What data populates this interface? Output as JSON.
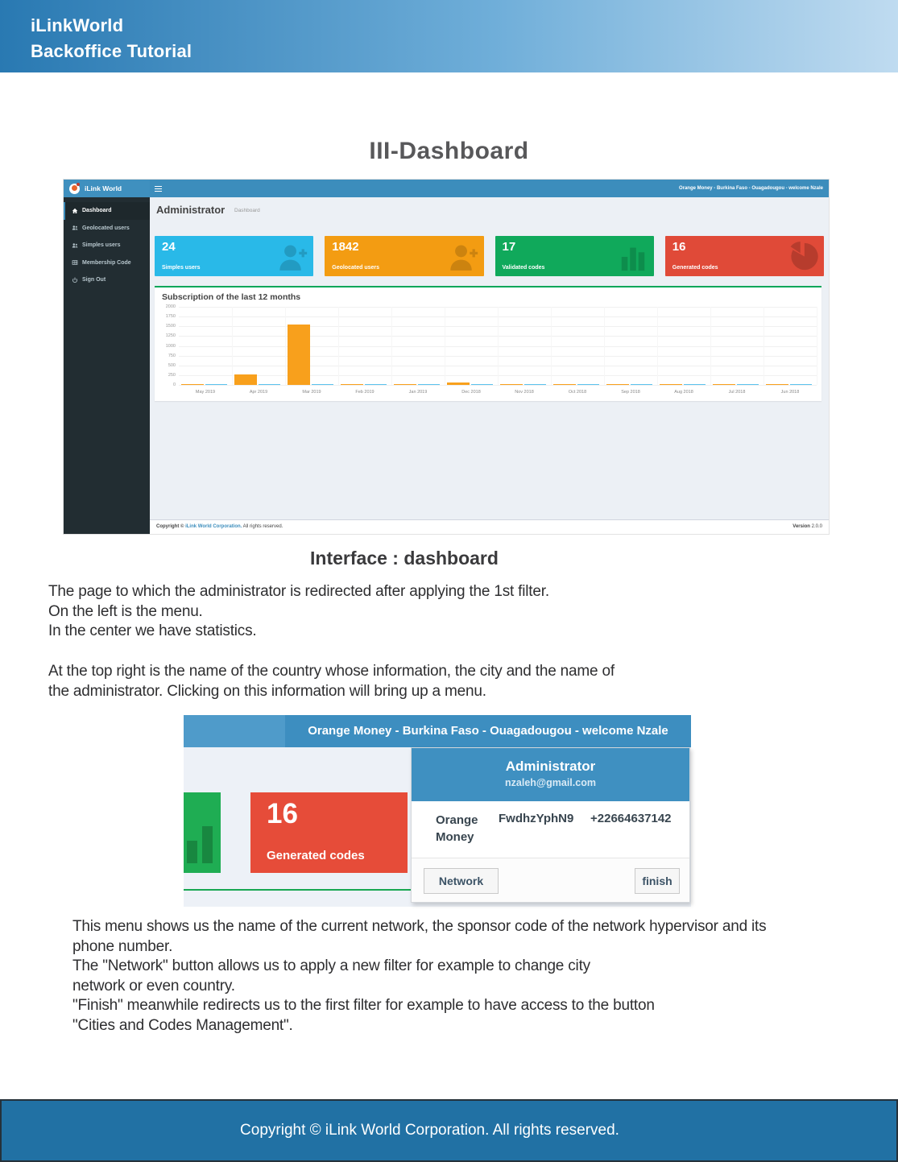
{
  "doc": {
    "header": {
      "line1": "iLinkWorld",
      "line2": "Backoffice Tutorial"
    },
    "title": "III-Dashboard",
    "subtitle": "Interface : dashboard",
    "para1": [
      "The page to which the administrator is redirected after applying the 1st filter.",
      "On the left is the menu.",
      "In the center we have statistics.",
      "",
      "At the top right is the name of the country whose information, the city and the name of",
      " the administrator. Clicking on this information will bring up a menu."
    ],
    "para2": [
      "This menu shows us the name of the current network, the sponsor code of the network hypervisor and its",
      "phone number.",
      "The \"Network\" button allows us to apply a new filter for example to change city",
      "network or even country.",
      "\"Finish\" meanwhile redirects us to the first filter for example to have access to the button",
      " \"Cities and Codes Management\"."
    ],
    "footer": "Copyright © iLink World Corporation. All rights reserved."
  },
  "dashboard": {
    "brand": "iLink World",
    "logo_icon": "ilink-globe-pin-icon",
    "menu_toggle_icon": "hamburger-icon",
    "topbar_right": "Orange Money - Burkina Faso - Ouagadougou - welcome Nzale",
    "menu": [
      {
        "label": "Dashboard",
        "icon": "home-icon",
        "active": true
      },
      {
        "label": "Geolocated users",
        "icon": "users-icon",
        "active": false
      },
      {
        "label": "Simples users",
        "icon": "users-icon",
        "active": false
      },
      {
        "label": "Membership Code",
        "icon": "table-icon",
        "active": false
      },
      {
        "label": "Sign Out",
        "icon": "power-icon",
        "active": false
      }
    ],
    "page_title": "Administrator",
    "breadcrumb": "Dashboard",
    "cards": [
      {
        "value": "24",
        "label": "Simples users",
        "color": "#29b9e8",
        "icon": "user-plus-icon"
      },
      {
        "value": "1842",
        "label": "Geolocated users",
        "color": "#f39c12",
        "icon": "user-plus-icon"
      },
      {
        "value": "17",
        "label": "Validated codes",
        "color": "#10a95b",
        "icon": "bar-chart-icon"
      },
      {
        "value": "16",
        "label": "Generated codes",
        "color": "#e04a38",
        "icon": "pie-chart-icon"
      }
    ],
    "footer_pre": "Copyright © ",
    "footer_link": "iLink World Corporation.",
    "footer_post": " All rights reserved.",
    "version_label": "Version",
    "version_value": "2.0.0"
  },
  "chart_data": {
    "type": "bar",
    "title": "Subscription of the last 12 months",
    "categories": [
      "May 2019",
      "Apr 2019",
      "Mar 2019",
      "Feb 2019",
      "Jan 2019",
      "Dec 2018",
      "Nov 2018",
      "Oct 2018",
      "Sep 2018",
      "Aug 2018",
      "Jul 2018",
      "Jun 2018"
    ],
    "series": [
      {
        "name": "subscriptions-orange",
        "color": "#f8a01c",
        "values": [
          10,
          270,
          1550,
          15,
          10,
          65,
          15,
          10,
          12,
          12,
          10,
          12
        ]
      },
      {
        "name": "subscriptions-blue",
        "color": "#5bc2ed",
        "values": [
          15,
          18,
          30,
          20,
          15,
          20,
          18,
          15,
          15,
          15,
          15,
          15
        ]
      }
    ],
    "xlabel": "",
    "ylabel": "",
    "ylim": [
      0,
      2000
    ],
    "yticks": [
      0,
      250,
      500,
      750,
      1000,
      1250,
      1500,
      1750,
      2000
    ],
    "grid": true,
    "legend": "none"
  },
  "popup": {
    "topbar_text": "Orange Money - Burkina Faso - Ouagadougou - welcome Nzale",
    "green_card_icon": "bar-chart-icon",
    "card_red": {
      "value": "16",
      "label": "Generated codes"
    },
    "dropdown": {
      "title": "Administrator",
      "email": "nzaleh@gmail.com",
      "network": "Orange Money",
      "sponsor_code": "FwdhzYphN9",
      "phone": "+22664637142",
      "network_button": "Network",
      "finish_button": "finish"
    }
  }
}
